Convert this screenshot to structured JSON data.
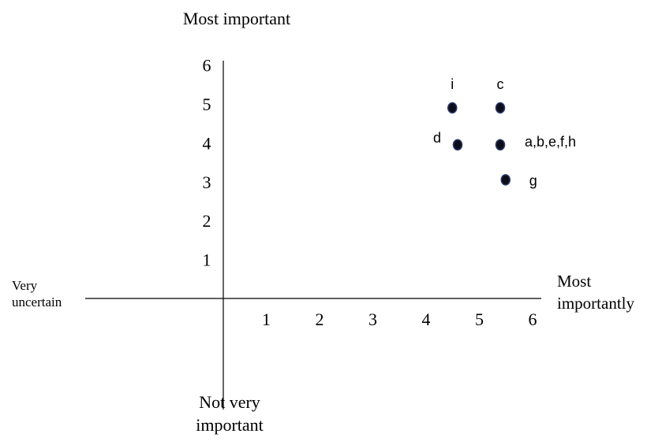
{
  "chart_data": {
    "type": "scatter",
    "title": "",
    "axis_labels": {
      "top": "Most important",
      "bottom_line1": "Not very",
      "bottom_line2": "important",
      "left_line1": "Very",
      "left_line2": "uncertain",
      "right_line1": "Most",
      "right_line2": "importantly"
    },
    "x_ticks": [
      "1",
      "2",
      "3",
      "4",
      "5",
      "6"
    ],
    "y_ticks": [
      "1",
      "2",
      "3",
      "4",
      "5",
      "6"
    ],
    "xlim": [
      0,
      6.5
    ],
    "ylim": [
      0,
      6.5
    ],
    "grid": false,
    "points": [
      {
        "label": "i",
        "x": 4.3,
        "y": 4.9
      },
      {
        "label": "c",
        "x": 5.2,
        "y": 4.9
      },
      {
        "label": "d",
        "x": 4.4,
        "y": 3.95
      },
      {
        "label": "a,b,e,f,h",
        "x": 5.2,
        "y": 3.95
      },
      {
        "label": "g",
        "x": 5.3,
        "y": 3.05
      }
    ]
  }
}
